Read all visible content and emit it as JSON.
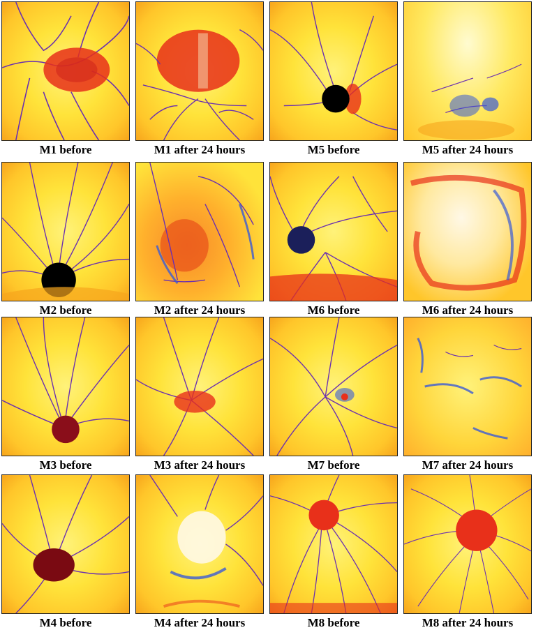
{
  "panels": [
    {
      "caption": "M1 before"
    },
    {
      "caption": "M1 after 24 hours"
    },
    {
      "caption": "M5 before"
    },
    {
      "caption": "M5 after 24 hours"
    },
    {
      "caption": "M2 before"
    },
    {
      "caption": "M2 after 24 hours"
    },
    {
      "caption": "M6 before"
    },
    {
      "caption": "M6 after 24 hours"
    },
    {
      "caption": "M3 before"
    },
    {
      "caption": "M3 after 24 hours"
    },
    {
      "caption": "M7 before"
    },
    {
      "caption": "M7 after 24 hours"
    },
    {
      "caption": "M4 before"
    },
    {
      "caption": "M4 after 24 hours"
    },
    {
      "caption": "M8 before"
    },
    {
      "caption": "M8 after 24 hours"
    }
  ],
  "colors": {
    "background": "#ffe33a",
    "vessel": "#6a2fb0",
    "vessel_edge": "#3b5bd6",
    "lesion_red": "#e8301a",
    "implant_black": "#000000"
  }
}
